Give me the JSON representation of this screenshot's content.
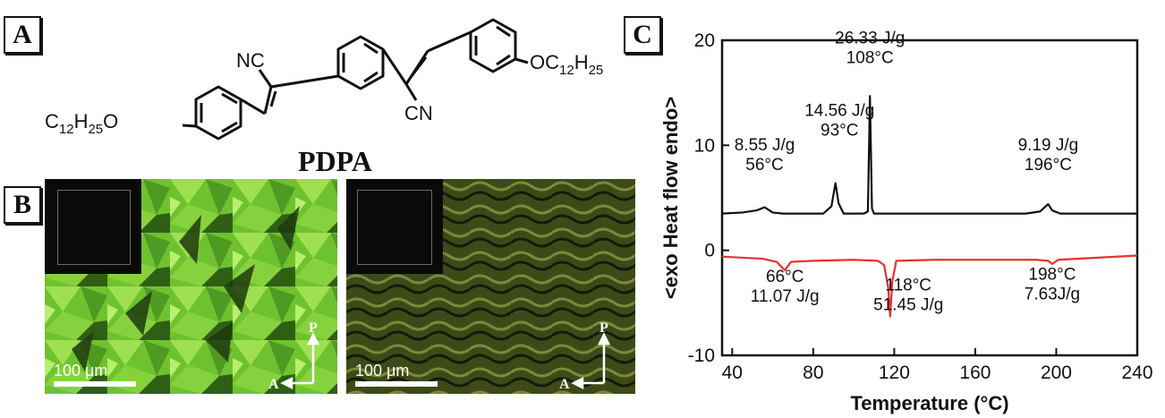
{
  "panels": {
    "a": "A",
    "b": "B",
    "c": "C"
  },
  "molecule": {
    "name": "PDPA",
    "groups": {
      "nc_top": "NC",
      "cn_bottom": "CN",
      "alkyl_right_prefix": "OC",
      "alkyl_left_prefix": "C",
      "alkyl_left_suffix": "O",
      "c12": "12",
      "h25": "25",
      "h": "H"
    }
  },
  "micrographs": [
    {
      "scale_label": "100 μm",
      "polarizer": "P",
      "analyzer": "A",
      "colors": {
        "base": "#6fc22f",
        "light": "#b6f06d",
        "dark": "#1f3a0e"
      }
    },
    {
      "scale_label": "100 μm",
      "polarizer": "P",
      "analyzer": "A",
      "colors": {
        "base": "#3d4a18",
        "light": "#7b8a3a",
        "dark": "#141a08"
      }
    }
  ],
  "chart_data": {
    "type": "line",
    "xlabel": "Temperature (°C)",
    "ylabel": "<exo Heat flow endo>",
    "xlim": [
      35,
      240
    ],
    "ylim": [
      -10,
      20
    ],
    "xticks": [
      40,
      80,
      120,
      160,
      200,
      240
    ],
    "yticks": [
      -10,
      0,
      10,
      20
    ],
    "grid": false,
    "series": [
      {
        "color": "#111111",
        "values": [
          [
            35,
            3.5
          ],
          [
            45,
            3.6
          ],
          [
            52,
            3.8
          ],
          [
            56,
            4.1
          ],
          [
            60,
            3.6
          ],
          [
            65,
            3.5
          ],
          [
            85,
            3.5
          ],
          [
            89,
            4.2
          ],
          [
            91,
            6.4
          ],
          [
            92.5,
            4.5
          ],
          [
            95,
            3.5
          ],
          [
            105,
            3.5
          ],
          [
            107,
            3.7
          ],
          [
            108,
            14.7
          ],
          [
            109,
            4.0
          ],
          [
            110,
            3.5
          ],
          [
            150,
            3.5
          ],
          [
            185,
            3.5
          ],
          [
            192,
            3.7
          ],
          [
            196,
            4.4
          ],
          [
            198,
            3.8
          ],
          [
            202,
            3.5
          ],
          [
            240,
            3.5
          ]
        ]
      },
      {
        "color": "#e83030",
        "values": [
          [
            35,
            -0.6
          ],
          [
            55,
            -0.8
          ],
          [
            62,
            -1.1
          ],
          [
            66,
            -1.9
          ],
          [
            69,
            -1.1
          ],
          [
            80,
            -1.0
          ],
          [
            100,
            -0.9
          ],
          [
            112,
            -1.0
          ],
          [
            115,
            -1.4
          ],
          [
            117,
            -3.5
          ],
          [
            118,
            -6.3
          ],
          [
            119,
            -3.0
          ],
          [
            121,
            -1.0
          ],
          [
            140,
            -0.9
          ],
          [
            160,
            -0.9
          ],
          [
            190,
            -0.9
          ],
          [
            196,
            -1.0
          ],
          [
            198,
            -1.3
          ],
          [
            201,
            -0.9
          ],
          [
            240,
            -0.5
          ]
        ]
      }
    ],
    "annotations": [
      {
        "lines": [
          "26.33 J/g",
          "108°C"
        ],
        "x": 108,
        "y": 19.7
      },
      {
        "lines": [
          "14.56 J/g",
          "93°C"
        ],
        "x": 93,
        "y": 12.8
      },
      {
        "lines": [
          "8.55 J/g",
          "56°C"
        ],
        "x": 56,
        "y": 9.5
      },
      {
        "lines": [
          "9.19 J/g",
          "196°C"
        ],
        "x": 196,
        "y": 9.5
      },
      {
        "lines": [
          "66°C",
          "11.07 J/g"
        ],
        "x": 66,
        "y": -3.0
      },
      {
        "lines": [
          "118°C",
          "51.45 J/g"
        ],
        "x": 127,
        "y": -3.8
      },
      {
        "lines": [
          "198°C",
          "7.63J/g"
        ],
        "x": 198,
        "y": -2.8
      }
    ]
  }
}
